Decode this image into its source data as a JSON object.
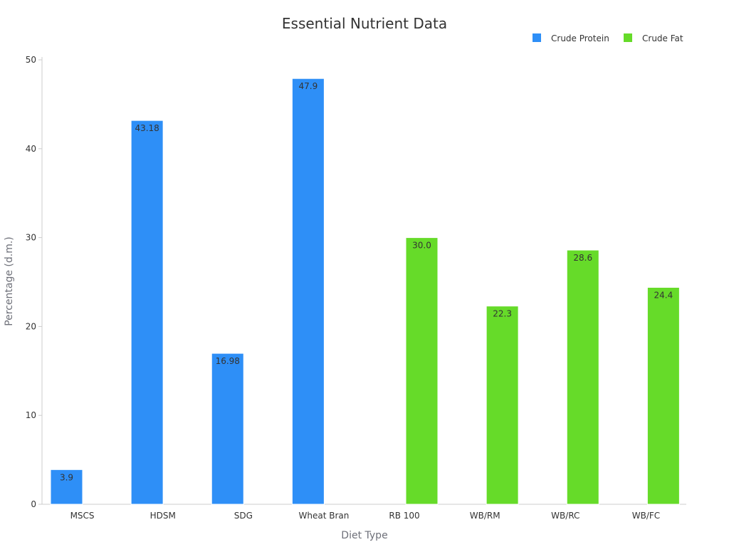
{
  "chart_data": {
    "type": "bar",
    "title": "Essential Nutrient Data",
    "xlabel": "Diet Type",
    "ylabel": "Percentage (d.m.)",
    "ylim": [
      0,
      50
    ],
    "yticks": [
      0,
      10,
      20,
      30,
      40,
      50
    ],
    "categories": [
      "MSCS",
      "HDSM",
      "SDG",
      "Wheat Bran",
      "RB 100",
      "WB/RM",
      "WB/RC",
      "WB/FC"
    ],
    "series": [
      {
        "name": "Crude Protein",
        "color": "#2e8ff7",
        "values": [
          3.9,
          43.18,
          16.98,
          47.9,
          null,
          null,
          null,
          null
        ],
        "labels": [
          "3.9",
          "43.18",
          "16.98",
          "47.9",
          null,
          null,
          null,
          null
        ]
      },
      {
        "name": "Crude Fat",
        "color": "#66db29",
        "values": [
          null,
          null,
          null,
          null,
          30.0,
          22.3,
          28.6,
          24.4
        ],
        "labels": [
          null,
          null,
          null,
          null,
          "30.0",
          "22.3",
          "28.6",
          "24.4"
        ]
      }
    ],
    "legend_position": "top-right",
    "grid": false
  }
}
